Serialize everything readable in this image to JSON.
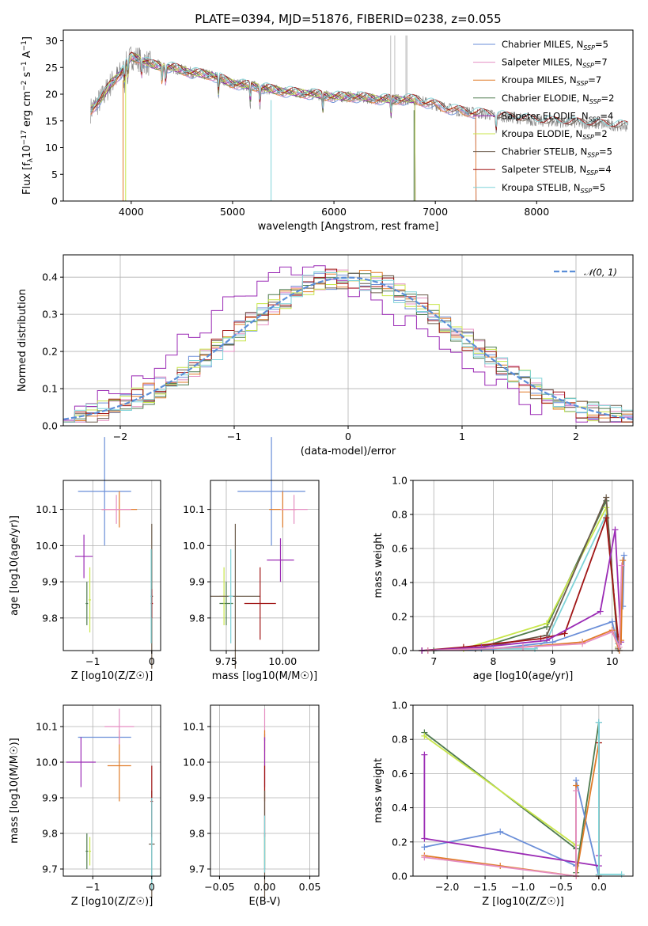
{
  "title": "PLATE=0394, MJD=51876, FIBERID=0238, z=0.055",
  "colors": {
    "chabrier_miles": "#6a8ed8",
    "salpeter_miles": "#e58ec2",
    "kroupa_miles": "#e07b28",
    "chabrier_elodie": "#4e7a4e",
    "salpeter_elodie": "#9b2bb5",
    "kroupa_elodie": "#c8e64a",
    "chabrier_stelib": "#6b5b4b",
    "salpeter_stelib": "#a01515",
    "kroupa_stelib": "#7fd3d8",
    "data": "#808080",
    "normal": "#5b8ed8",
    "grid": "#b0b0b0"
  },
  "legend": {
    "prefix": [
      "Chabrier MILES, N",
      "Salpeter MILES, N",
      "Kroupa MILES, N",
      "Chabrier ELODIE, N",
      "Salpeter ELODIE, N",
      "Kroupa ELODIE, N",
      "Chabrier STELIB, N",
      "Salpeter STELIB, N",
      "Kroupa STELIB, N"
    ],
    "sub": "SSP",
    "suffix": [
      "=5",
      "=7",
      "=7",
      "=2",
      "=4",
      "=2",
      "=5",
      "=4",
      "=5"
    ]
  },
  "chart_data": [
    {
      "type": "line",
      "name": "spectrum",
      "xlabel": "wavelength [Angstrom, rest frame]",
      "ylabel": "Flux [f_λ 10^-17 erg cm^-2 s^-1 A^-1]",
      "xlim": [
        3330,
        8950
      ],
      "ylim": [
        0,
        32
      ],
      "xticks": [
        "4000",
        "5000",
        "6000",
        "7000",
        "8000"
      ],
      "yticks": [
        "0",
        "5",
        "10",
        "15",
        "20",
        "25",
        "30"
      ],
      "continuum_x": [
        3600,
        3700,
        3800,
        3900,
        4000,
        4100,
        4200,
        4400,
        4600,
        4800,
        5000,
        5200,
        5500,
        5800,
        6000,
        6200,
        6500,
        6800,
        7000,
        7200,
        7400,
        7600,
        8000,
        8500,
        8900
      ],
      "continuum_y": [
        17,
        19,
        22,
        24,
        27,
        26.5,
        25.5,
        25,
        24,
        23.5,
        22,
        21.5,
        20.5,
        20,
        19.5,
        19.5,
        19,
        19,
        18,
        17,
        16.5,
        16,
        15,
        14.5,
        14
      ],
      "absorption_features": [
        3933,
        3968,
        4102,
        4304,
        4340,
        4861,
        5175,
        5270,
        5890,
        6563,
        7600
      ]
    },
    {
      "type": "histogram",
      "name": "residuals",
      "xlabel": "(data-model)/error",
      "ylabel": "Normed distribution",
      "xlim": [
        -2.5,
        2.5
      ],
      "ylim": [
        0,
        0.46
      ],
      "xticks": [
        "−2",
        "−1",
        "0",
        "1",
        "2"
      ],
      "yticks": [
        "0.0",
        "0.1",
        "0.2",
        "0.3",
        "0.4"
      ],
      "legend_label": "𝒩(0, 1)",
      "bin_edges_from": -2.5,
      "bin_width": 0.1
    },
    {
      "type": "scatter",
      "name": "age-vs-Z",
      "xlabel": "Z [log10(Z/Z☉)]",
      "ylabel": "age  [log10(age/yr)]",
      "xlim": [
        -1.5,
        0.15
      ],
      "ylim": [
        9.71,
        10.18
      ],
      "xticks": [
        "−1",
        "0"
      ],
      "yticks": [
        "9.8",
        "9.9",
        "10.0",
        "10.1"
      ],
      "points": [
        {
          "x": -0.8,
          "xerr": 0.45,
          "y": 10.15,
          "yerr": 0.15,
          "c": "chabrier_miles"
        },
        {
          "x": -0.55,
          "xerr": 0.3,
          "y": 10.1,
          "yerr": 0.05,
          "c": "kroupa_miles"
        },
        {
          "x": -0.6,
          "xerr": 0.25,
          "y": 10.1,
          "yerr": 0.04,
          "c": "salpeter_miles"
        },
        {
          "x": -1.15,
          "xerr": 0.15,
          "y": 9.97,
          "yerr": 0.06,
          "c": "salpeter_elodie"
        },
        {
          "x": -1.1,
          "xerr": 0.02,
          "y": 9.84,
          "yerr": 0.06,
          "c": "chabrier_elodie"
        },
        {
          "x": -1.05,
          "xerr": 0.02,
          "y": 9.85,
          "yerr": 0.09,
          "c": "kroupa_elodie"
        },
        {
          "x": 0.0,
          "xerr": 0.02,
          "y": 9.86,
          "yerr": 0.2,
          "c": "chabrier_stelib"
        },
        {
          "x": 0.0,
          "xerr": 0.02,
          "y": 9.84,
          "yerr": 0.04,
          "c": "salpeter_stelib"
        },
        {
          "x": -0.01,
          "xerr": 0.01,
          "y": 9.86,
          "yerr": 0.13,
          "c": "kroupa_stelib"
        }
      ]
    },
    {
      "type": "scatter",
      "name": "age-vs-mass",
      "xlabel": "mass [log10(M/M☉)]",
      "ylabel": "",
      "xlim": [
        9.68,
        10.16
      ],
      "ylim": [
        9.71,
        10.18
      ],
      "xticks": [
        "9.75",
        "10.00"
      ],
      "yticks": [
        "9.8",
        "9.9",
        "10.0",
        "10.1"
      ],
      "points": [
        {
          "x": 9.95,
          "xerr": 0.15,
          "y": 10.15,
          "yerr": 0.15,
          "c": "chabrier_miles"
        },
        {
          "x": 10.0,
          "xerr": 0.06,
          "y": 10.1,
          "yerr": 0.05,
          "c": "kroupa_miles"
        },
        {
          "x": 10.05,
          "xerr": 0.06,
          "y": 10.1,
          "yerr": 0.04,
          "c": "salpeter_miles"
        },
        {
          "x": 9.99,
          "xerr": 0.06,
          "y": 9.96,
          "yerr": 0.06,
          "c": "salpeter_elodie"
        },
        {
          "x": 9.75,
          "xerr": 0.03,
          "y": 9.84,
          "yerr": 0.06,
          "c": "chabrier_elodie"
        },
        {
          "x": 9.74,
          "xerr": 0.02,
          "y": 9.86,
          "yerr": 0.08,
          "c": "kroupa_elodie"
        },
        {
          "x": 9.79,
          "xerr": 0.11,
          "y": 9.86,
          "yerr": 0.2,
          "c": "chabrier_stelib"
        },
        {
          "x": 9.9,
          "xerr": 0.07,
          "y": 9.84,
          "yerr": 0.1,
          "c": "salpeter_stelib"
        },
        {
          "x": 9.77,
          "xerr": 0.01,
          "y": 9.86,
          "yerr": 0.13,
          "c": "kroupa_stelib"
        }
      ]
    },
    {
      "type": "line",
      "name": "mass-weight-vs-age",
      "xlabel": "age  [log10(age/yr)]",
      "ylabel": "mass weight",
      "xlim": [
        6.65,
        10.35
      ],
      "ylim": [
        0,
        1
      ],
      "xticks": [
        "7",
        "8",
        "9",
        "10"
      ],
      "yticks": [
        "0.0",
        "0.2",
        "0.4",
        "0.6",
        "0.8",
        "1.0"
      ],
      "series": [
        {
          "c": "kroupa_stelib",
          "x": [
            6.8,
            7.0,
            7.8,
            8.7,
            8.9,
            9.9,
            10.1
          ],
          "y": [
            0.0,
            0.0,
            0.01,
            0.01,
            0.06,
            0.8,
            0.04
          ]
        },
        {
          "c": "chabrier_elodie",
          "x": [
            6.8,
            7.0,
            7.8,
            8.9,
            9.9,
            10.1
          ],
          "y": [
            0.0,
            0.0,
            0.02,
            0.14,
            0.88,
            0.02
          ]
        },
        {
          "c": "kroupa_elodie",
          "x": [
            6.9,
            7.5,
            8.9,
            9.9,
            10.1
          ],
          "y": [
            0.0,
            0.01,
            0.16,
            0.84,
            0.02
          ]
        },
        {
          "c": "chabrier_stelib",
          "x": [
            6.8,
            7.7,
            8.9,
            9.9,
            10.1
          ],
          "y": [
            0.0,
            0.01,
            0.09,
            0.9,
            0.01
          ]
        },
        {
          "c": "salpeter_stelib",
          "x": [
            6.8,
            7.5,
            8.8,
            9.2,
            9.9,
            10.1
          ],
          "y": [
            0.0,
            0.02,
            0.07,
            0.1,
            0.78,
            0.08
          ]
        },
        {
          "c": "salpeter_elodie",
          "x": [
            6.8,
            7.8,
            8.9,
            9.8,
            10.05,
            10.15
          ],
          "y": [
            0.0,
            0.02,
            0.06,
            0.23,
            0.71,
            0.05
          ]
        },
        {
          "c": "chabrier_miles",
          "x": [
            6.9,
            8.0,
            9.0,
            10.0,
            10.12,
            10.2,
            10.18
          ],
          "y": [
            0.0,
            0.01,
            0.05,
            0.17,
            0.0,
            0.56,
            0.26
          ]
        },
        {
          "c": "kroupa_miles",
          "x": [
            6.9,
            8.5,
            9.5,
            10.0,
            10.12,
            10.18,
            10.15
          ],
          "y": [
            0.0,
            0.02,
            0.05,
            0.12,
            0.0,
            0.53,
            0.06
          ]
        },
        {
          "c": "salpeter_miles",
          "x": [
            6.9,
            8.5,
            9.5,
            10.0,
            10.12,
            10.16
          ],
          "y": [
            0.0,
            0.02,
            0.04,
            0.11,
            0.02,
            0.5
          ]
        }
      ]
    },
    {
      "type": "scatter",
      "name": "mass-vs-Z",
      "xlabel": "Z [log10(Z/Z☉)]",
      "ylabel": "mass [log10(M/M☉)]",
      "xlim": [
        -1.5,
        0.15
      ],
      "ylim": [
        9.68,
        10.16
      ],
      "xticks": [
        "−1",
        "0"
      ],
      "yticks": [
        "9.7",
        "9.8",
        "9.9",
        "10.0",
        "10.1"
      ],
      "points": [
        {
          "x": -0.8,
          "xerr": 0.45,
          "y": 10.07,
          "yerr": 0.0,
          "c": "chabrier_miles"
        },
        {
          "x": -0.55,
          "xerr": 0.2,
          "y": 9.99,
          "yerr": 0.1,
          "c": "kroupa_miles"
        },
        {
          "x": -0.55,
          "xerr": 0.25,
          "y": 10.1,
          "yerr": 0.05,
          "c": "salpeter_miles"
        },
        {
          "x": -1.2,
          "xerr": 0.25,
          "y": 10.0,
          "yerr": 0.07,
          "c": "salpeter_elodie"
        },
        {
          "x": -1.1,
          "xerr": 0.02,
          "y": 9.75,
          "yerr": 0.05,
          "c": "chabrier_elodie"
        },
        {
          "x": -1.05,
          "xerr": 0.02,
          "y": 9.75,
          "yerr": 0.04,
          "c": "kroupa_elodie"
        },
        {
          "x": 0.0,
          "xerr": 0.05,
          "y": 9.77,
          "yerr": 0.15,
          "c": "chabrier_stelib"
        },
        {
          "x": 0.0,
          "xerr": 0.02,
          "y": 9.89,
          "yerr": 0.1,
          "c": "salpeter_stelib"
        },
        {
          "x": 0.0,
          "xerr": 0.01,
          "y": 9.77,
          "yerr": 0.13,
          "c": "kroupa_stelib"
        }
      ]
    },
    {
      "type": "scatter",
      "name": "mass-vs-ebv",
      "xlabel": "E(B-V)",
      "ylabel": "",
      "xlim": [
        -0.06,
        0.06
      ],
      "ylim": [
        9.68,
        10.16
      ],
      "xticks": [
        "−0.05",
        "0.00",
        "0.05"
      ],
      "yticks": [
        "9.7",
        "9.8",
        "9.9",
        "10.0",
        "10.1"
      ],
      "points": [
        {
          "x": 0.0,
          "xerr": 0.0,
          "y": 10.07,
          "yerr": 0.01,
          "c": "chabrier_miles"
        },
        {
          "x": 0.0,
          "xerr": 0.0,
          "y": 10.09,
          "yerr": 0.06,
          "c": "salpeter_miles"
        },
        {
          "x": 0.0,
          "xerr": 0.0,
          "y": 9.99,
          "yerr": 0.1,
          "c": "kroupa_miles"
        },
        {
          "x": 0.0,
          "xerr": 0.0,
          "y": 10.0,
          "yerr": 0.07,
          "c": "salpeter_elodie"
        },
        {
          "x": 0.0,
          "xerr": 0.0,
          "y": 9.75,
          "yerr": 0.05,
          "c": "chabrier_elodie"
        },
        {
          "x": 0.0,
          "xerr": 0.0,
          "y": 9.75,
          "yerr": 0.04,
          "c": "kroupa_elodie"
        },
        {
          "x": 0.0,
          "xerr": 0.0,
          "y": 9.89,
          "yerr": 0.1,
          "c": "salpeter_stelib"
        },
        {
          "x": 0.0,
          "xerr": 0.0,
          "y": 9.77,
          "yerr": 0.15,
          "c": "chabrier_stelib"
        },
        {
          "x": 0.0,
          "xerr": 0.0,
          "y": 9.77,
          "yerr": 0.08,
          "c": "kroupa_stelib"
        }
      ]
    },
    {
      "type": "line",
      "name": "mass-weight-vs-Z",
      "xlabel": "Z [log10(Z/Z☉)]",
      "ylabel": "mass weight",
      "xlim": [
        -2.45,
        0.45
      ],
      "ylim": [
        0,
        1
      ],
      "xticks": [
        "−2.0",
        "−1.5",
        "−1.0",
        "−0.5",
        "0.0"
      ],
      "yticks": [
        "0.0",
        "0.2",
        "0.4",
        "0.6",
        "0.8",
        "1.0"
      ],
      "series": [
        {
          "c": "chabrier_elodie",
          "x": [
            -2.3,
            -0.3,
            -0.3,
            0.0,
            0.0
          ],
          "y": [
            0.84,
            0.16,
            0.02,
            0.9,
            0.01
          ]
        },
        {
          "c": "kroupa_elodie",
          "x": [
            -2.3,
            -0.3,
            -0.3
          ],
          "y": [
            0.82,
            0.18,
            0.0
          ]
        },
        {
          "c": "chabrier_miles",
          "x": [
            -2.3,
            -1.3,
            -0.3,
            -0.3,
            0.0,
            0.0
          ],
          "y": [
            0.17,
            0.26,
            0.06,
            0.56,
            0.0,
            0.9
          ]
        },
        {
          "c": "salpeter_elodie",
          "x": [
            -2.3,
            -2.3,
            0.0,
            0.0
          ],
          "y": [
            0.71,
            0.22,
            0.06,
            0.12
          ]
        },
        {
          "c": "kroupa_miles",
          "x": [
            -2.3,
            -1.3,
            -0.3,
            -0.3,
            -0.3,
            0.0,
            0.0
          ],
          "y": [
            0.12,
            0.06,
            0.0,
            0.53,
            0.0,
            0.78,
            0.0
          ]
        },
        {
          "c": "salpeter_miles",
          "x": [
            -2.3,
            -0.3,
            -0.3,
            -0.3
          ],
          "y": [
            0.11,
            0.0,
            0.5,
            0.0
          ]
        },
        {
          "c": "salpeter_stelib",
          "x": [
            0.0,
            0.0
          ],
          "y": [
            0.78,
            0.0
          ]
        },
        {
          "c": "kroupa_stelib",
          "x": [
            0.0,
            0.0,
            0.3
          ],
          "y": [
            0.9,
            0.01,
            0.01
          ]
        }
      ]
    }
  ]
}
